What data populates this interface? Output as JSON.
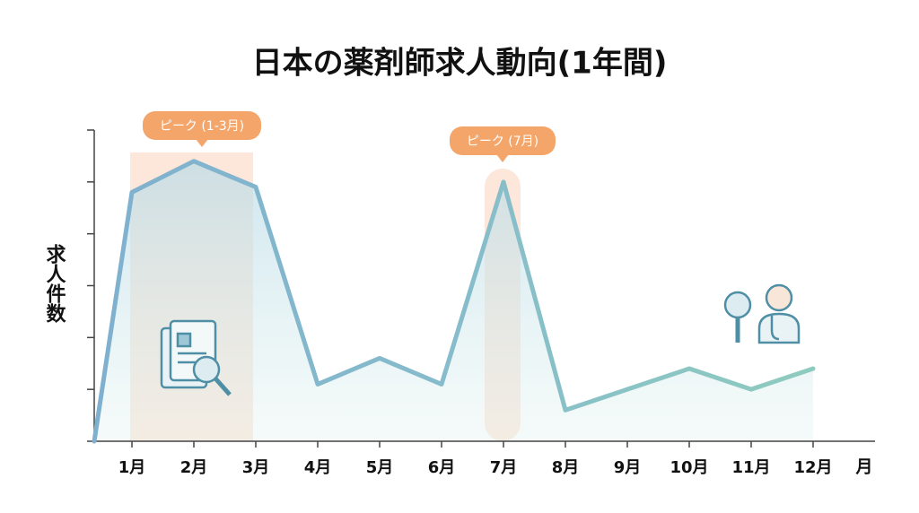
{
  "chart_data": {
    "type": "line",
    "title": "日本の薬剤師求人動向(1年間)",
    "y_label": "求人件数",
    "x_label": "月",
    "categories": [
      null,
      "1月",
      "2月",
      "3月",
      "4月",
      "5月",
      "6月",
      "7月",
      "8月",
      "9月",
      "10月",
      "11月",
      "12月"
    ],
    "values": [
      0,
      4.8,
      5.4,
      4.9,
      1.1,
      1.6,
      1.1,
      5.0,
      0.6,
      1.0,
      1.4,
      1.0,
      1.4
    ],
    "ylim": [
      0,
      6
    ],
    "yticks": [
      0,
      1,
      2,
      3,
      4,
      5,
      6
    ],
    "color": "#86bccb",
    "annotations": [
      {
        "text": "ピーク (1-3月)"
      },
      {
        "text": "ピーク (7月)"
      }
    ]
  }
}
